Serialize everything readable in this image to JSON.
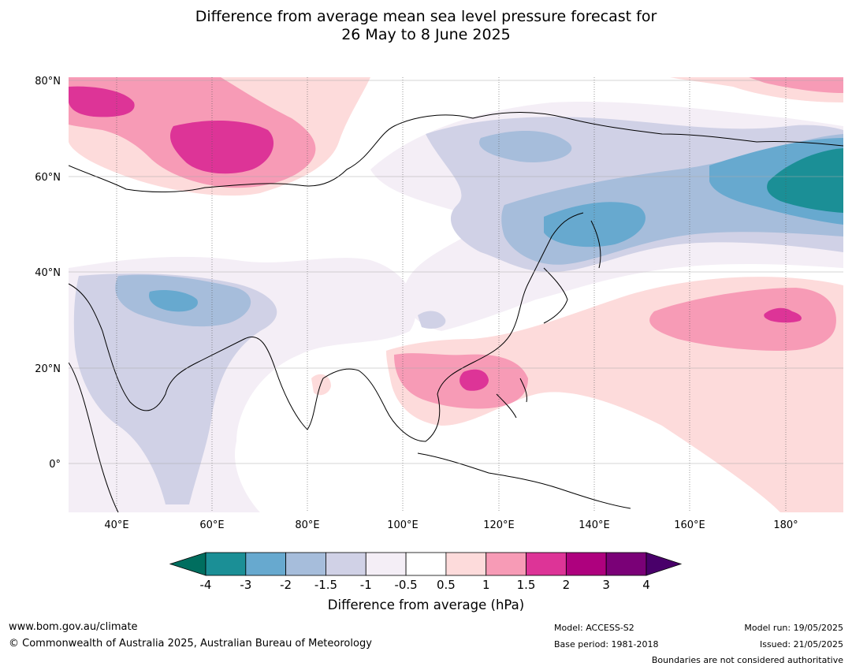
{
  "title": {
    "line1": "Difference from average mean sea level pressure forecast for",
    "line2": "26 May to 8 June 2025"
  },
  "map": {
    "lon_labels": [
      "40°E",
      "60°E",
      "80°E",
      "100°E",
      "120°E",
      "140°E",
      "160°E",
      "180°"
    ],
    "lat_labels": [
      "80°N",
      "60°N",
      "40°N",
      "20°N",
      "0°"
    ]
  },
  "colorbar": {
    "title": "Difference from average (hPa)",
    "ticks": [
      "-4",
      "-3",
      "-2",
      "-1.5",
      "-1",
      "-0.5",
      "0.5",
      "1",
      "1.5",
      "2",
      "3",
      "4"
    ],
    "colors": [
      "#006e5f",
      "#1b8f96",
      "#67a9cf",
      "#a6bddb",
      "#d0d1e6",
      "#f4eef6",
      "#ffffff",
      "#fddbdb",
      "#f79bb6",
      "#dd3497",
      "#ae017e",
      "#7a0177",
      "#49006a"
    ]
  },
  "footer": {
    "url": "www.bom.gov.au/climate",
    "copyright": "© Commonwealth of Australia 2025, Australian Bureau of Meteorology",
    "model": "Model: ACCESS-S2",
    "base_period": "Base period: 1981-2018",
    "model_run": "Model run: 19/05/2025",
    "issued": "Issued: 21/05/2025",
    "boundaries": "Boundaries are not considered authoritative"
  }
}
